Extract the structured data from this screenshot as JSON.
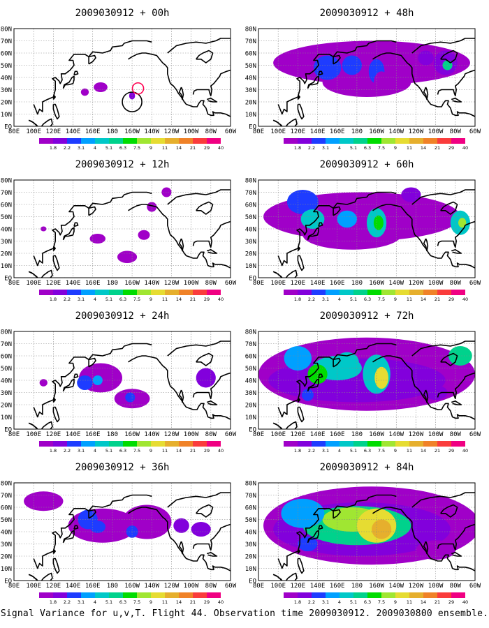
{
  "caption": "Signal Variance for u,v,T. Flight 44. Observation time 2009030912. 2009030800 ensemble.",
  "lat_labels": [
    "80N",
    "70N",
    "60N",
    "50N",
    "40N",
    "30N",
    "20N",
    "10N",
    "EQ"
  ],
  "lon_labels": [
    "80E",
    "100E",
    "120E",
    "140E",
    "160E",
    "180",
    "160W",
    "140W",
    "120W",
    "100W",
    "80W",
    "60W"
  ],
  "colorbar": {
    "labels": [
      "1.8",
      "2.2",
      "3.1",
      "4",
      "5.1",
      "6.3",
      "7.5",
      "9",
      "11",
      "14",
      "21",
      "29",
      "40"
    ],
    "colors": [
      "#a000c8",
      "#8200dc",
      "#1e3cff",
      "#00a0ff",
      "#00c8c8",
      "#00d28c",
      "#00dc00",
      "#a0e632",
      "#e6dc32",
      "#e6af2d",
      "#f08228",
      "#fa3c3c",
      "#f00082"
    ]
  },
  "panels": [
    {
      "title": "2009030912 + 00h",
      "lead_hours": 0
    },
    {
      "title": "2009030912 + 48h",
      "lead_hours": 48
    },
    {
      "title": "2009030912 + 12h",
      "lead_hours": 12
    },
    {
      "title": "2009030912 + 60h",
      "lead_hours": 60
    },
    {
      "title": "2009030912 + 24h",
      "lead_hours": 24
    },
    {
      "title": "2009030912 + 72h",
      "lead_hours": 72
    },
    {
      "title": "2009030912 + 36h",
      "lead_hours": 36
    },
    {
      "title": "2009030912 + 84h",
      "lead_hours": 84
    }
  ],
  "map_extent": {
    "lon": [
      80,
      300
    ],
    "lat": [
      0,
      80
    ]
  },
  "flight_track_markers": [
    {
      "panel": 0,
      "color": "#000000",
      "lon": 200,
      "lat": 20
    },
    {
      "panel": 0,
      "color": "#ff0050",
      "lon": 206,
      "lat": 31
    }
  ]
}
